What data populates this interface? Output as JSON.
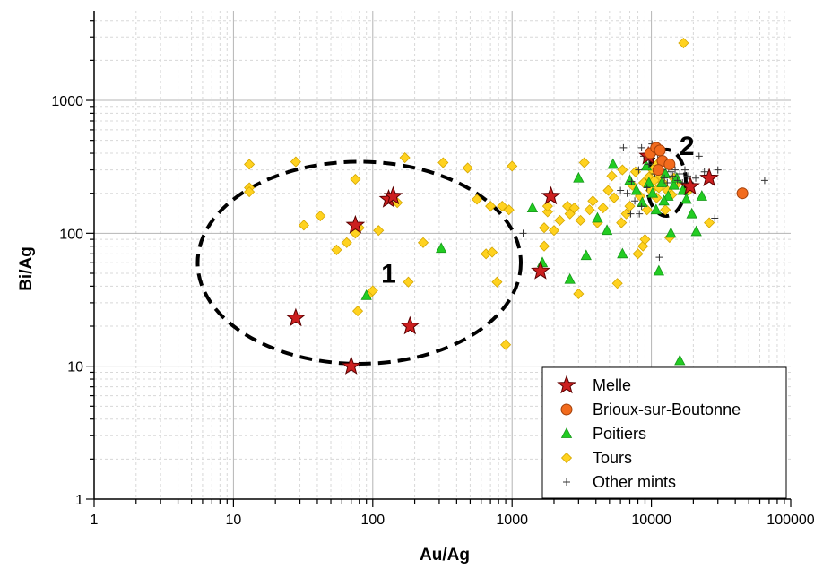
{
  "chart_data": {
    "type": "scatter",
    "title": "",
    "xlabel": "Au/Ag",
    "ylabel": "Bi/Ag",
    "xscale": "log",
    "yscale": "log",
    "xlim": [
      1,
      100000
    ],
    "ylim": [
      1,
      6000
    ],
    "x_ticks": [
      1,
      10,
      100,
      1000,
      10000,
      100000
    ],
    "x_tick_labels": [
      "1",
      "10",
      "100",
      "1000",
      "10000",
      "100000"
    ],
    "y_ticks": [
      1,
      10,
      100,
      1000
    ],
    "y_tick_labels": [
      "1",
      "10",
      "100",
      "1000"
    ],
    "grid": true,
    "legend_position": "bottom-right",
    "colors": {
      "melle": "#cc1f1f",
      "brioux": "#f26b1d",
      "poitiers": "#22cc22",
      "tours": "#ffd21f",
      "other": "#333333",
      "major_grid": "#b4b4b4",
      "minor_grid": "#d8d8d8"
    },
    "annotations": [
      {
        "text": "1",
        "x": 130,
        "y": 48,
        "ellipse": {
          "cx": 80,
          "cy": 60,
          "rx_decades": 1.16,
          "ry_decades": 0.76
        }
      },
      {
        "text": "2",
        "x": 18000,
        "y": 440,
        "ellipse": {
          "cx": 12800,
          "cy": 240,
          "rx_decades": 0.14,
          "ry_decades": 0.25
        }
      }
    ],
    "series": [
      {
        "name": "Melle",
        "marker": "star",
        "points": [
          [
            28,
            23
          ],
          [
            70,
            10
          ],
          [
            75,
            115
          ],
          [
            130,
            180
          ],
          [
            140,
            190
          ],
          [
            185,
            20
          ],
          [
            1600,
            52
          ],
          [
            1900,
            190
          ],
          [
            9500,
            380
          ],
          [
            19000,
            225
          ],
          [
            26000,
            260
          ]
        ]
      },
      {
        "name": "Brioux-sur-Boutonne",
        "marker": "circle",
        "points": [
          [
            9800,
            400
          ],
          [
            10800,
            440
          ],
          [
            11500,
            420
          ],
          [
            12000,
            350
          ],
          [
            11200,
            300
          ],
          [
            13500,
            330
          ],
          [
            45000,
            200
          ]
        ]
      },
      {
        "name": "Poitiers",
        "marker": "triangle",
        "points": [
          [
            90,
            34
          ],
          [
            310,
            77
          ],
          [
            1400,
            155
          ],
          [
            1650,
            60
          ],
          [
            2600,
            45
          ],
          [
            3000,
            260
          ],
          [
            3400,
            68
          ],
          [
            4100,
            130
          ],
          [
            4800,
            105
          ],
          [
            5300,
            330
          ],
          [
            6200,
            70
          ],
          [
            7000,
            250
          ],
          [
            7800,
            210
          ],
          [
            8600,
            170
          ],
          [
            9200,
            320
          ],
          [
            10200,
            200
          ],
          [
            10800,
            150
          ],
          [
            11300,
            52
          ],
          [
            11900,
            240
          ],
          [
            12600,
            280
          ],
          [
            13200,
            190
          ],
          [
            13800,
            100
          ],
          [
            14500,
            230
          ],
          [
            15200,
            260
          ],
          [
            16000,
            11
          ],
          [
            16800,
            210
          ],
          [
            17800,
            180
          ],
          [
            19500,
            140
          ],
          [
            21000,
            103
          ],
          [
            23000,
            190
          ],
          [
            9600,
            240
          ],
          [
            12300,
            175
          ]
        ]
      },
      {
        "name": "Tours",
        "marker": "diamond",
        "points": [
          [
            13,
            330
          ],
          [
            13,
            220
          ],
          [
            13,
            205
          ],
          [
            28,
            345
          ],
          [
            32,
            115
          ],
          [
            42,
            135
          ],
          [
            55,
            75
          ],
          [
            65,
            85
          ],
          [
            75,
            100
          ],
          [
            75,
            255
          ],
          [
            78,
            26
          ],
          [
            80,
            110
          ],
          [
            95,
            35
          ],
          [
            100,
            37
          ],
          [
            110,
            105
          ],
          [
            150,
            170
          ],
          [
            170,
            370
          ],
          [
            180,
            43
          ],
          [
            230,
            85
          ],
          [
            320,
            340
          ],
          [
            480,
            310
          ],
          [
            560,
            180
          ],
          [
            650,
            70
          ],
          [
            700,
            160
          ],
          [
            720,
            72
          ],
          [
            780,
            43
          ],
          [
            850,
            160
          ],
          [
            900,
            14.5
          ],
          [
            950,
            150
          ],
          [
            1000,
            320
          ],
          [
            1700,
            80
          ],
          [
            1700,
            110
          ],
          [
            1800,
            145
          ],
          [
            1800,
            160
          ],
          [
            2000,
            105
          ],
          [
            2200,
            125
          ],
          [
            2500,
            160
          ],
          [
            2600,
            140
          ],
          [
            2800,
            155
          ],
          [
            3000,
            35
          ],
          [
            3100,
            125
          ],
          [
            3300,
            340
          ],
          [
            3600,
            150
          ],
          [
            3800,
            175
          ],
          [
            4100,
            120
          ],
          [
            4500,
            155
          ],
          [
            4900,
            210
          ],
          [
            5200,
            270
          ],
          [
            5400,
            185
          ],
          [
            5700,
            42
          ],
          [
            6100,
            120
          ],
          [
            6600,
            140
          ],
          [
            7000,
            160
          ],
          [
            7300,
            230
          ],
          [
            7700,
            290
          ],
          [
            8000,
            70
          ],
          [
            8300,
            190
          ],
          [
            8700,
            80
          ],
          [
            9000,
            90
          ],
          [
            9300,
            150
          ],
          [
            9600,
            265
          ],
          [
            9900,
            210
          ],
          [
            10200,
            300
          ],
          [
            10500,
            250
          ],
          [
            10900,
            185
          ],
          [
            11300,
            220
          ],
          [
            11700,
            270
          ],
          [
            12100,
            240
          ],
          [
            12600,
            150
          ],
          [
            13000,
            210
          ],
          [
            13500,
            93
          ],
          [
            14000,
            195
          ],
          [
            14500,
            260
          ],
          [
            15500,
            240
          ],
          [
            17000,
            2700
          ],
          [
            18500,
            210
          ],
          [
            26000,
            120
          ],
          [
            6200,
            300
          ],
          [
            8800,
            240
          ],
          [
            11000,
            330
          ]
        ]
      },
      {
        "name": "Other mints",
        "marker": "plus",
        "points": [
          [
            1200,
            100
          ],
          [
            6000,
            210
          ],
          [
            6700,
            200
          ],
          [
            7200,
            245
          ],
          [
            7600,
            175
          ],
          [
            8100,
            300
          ],
          [
            8500,
            440
          ],
          [
            8800,
            380
          ],
          [
            9300,
            220
          ],
          [
            9600,
            330
          ],
          [
            10100,
            470
          ],
          [
            10600,
            280
          ],
          [
            11100,
            390
          ],
          [
            11600,
            360
          ],
          [
            12000,
            300
          ],
          [
            12400,
            260
          ],
          [
            12800,
            340
          ],
          [
            13300,
            310
          ],
          [
            13800,
            290
          ],
          [
            14200,
            270
          ],
          [
            14800,
            300
          ],
          [
            15400,
            250
          ],
          [
            16000,
            280
          ],
          [
            16700,
            240
          ],
          [
            17400,
            300
          ],
          [
            18200,
            270
          ],
          [
            19000,
            240
          ],
          [
            19800,
            230
          ],
          [
            20800,
            260
          ],
          [
            22000,
            380
          ],
          [
            24000,
            290
          ],
          [
            26500,
            270
          ],
          [
            28500,
            130
          ],
          [
            30000,
            300
          ],
          [
            65000,
            250
          ],
          [
            8200,
            140
          ],
          [
            8500,
            160
          ],
          [
            11000,
            310
          ],
          [
            6300,
            440
          ],
          [
            11400,
            66
          ],
          [
            7100,
            140
          ],
          [
            13000,
            240
          ]
        ]
      }
    ]
  }
}
